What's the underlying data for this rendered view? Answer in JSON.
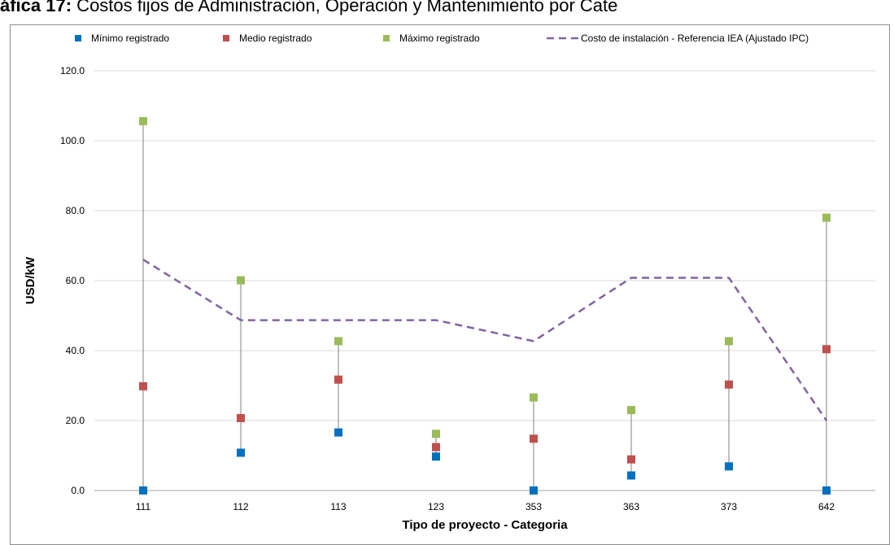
{
  "title": {
    "prefix": "áfica 17:",
    "text": " Costos fijos de Administración, Operación y Mantenimiento por Cate"
  },
  "colors": {
    "min": "#0070C0",
    "mid": "#C0504D",
    "max": "#9BBB59",
    "ref": "#8064A2",
    "grid": "#d9d9d9",
    "range_line": "#808080"
  },
  "chart_data": {
    "type": "scatter",
    "xlabel": "Tipo de proyecto - Categoria",
    "ylabel": "USD/kW",
    "ylim": [
      0,
      120
    ],
    "yticks": [
      "0.0",
      "20.0",
      "40.0",
      "60.0",
      "80.0",
      "100.0",
      "120.0"
    ],
    "grid": true,
    "legend_position": "top",
    "categories": [
      "111",
      "112",
      "113",
      "123",
      "353",
      "363",
      "373",
      "642"
    ],
    "series": [
      {
        "name": "Mínimo registrado",
        "marker": "square",
        "values": [
          0.0,
          10.8,
          16.6,
          9.7,
          0.0,
          4.3,
          6.9,
          0.0
        ]
      },
      {
        "name": "Medio registrado",
        "marker": "square",
        "values": [
          29.8,
          20.7,
          31.7,
          12.4,
          14.8,
          8.9,
          30.3,
          40.4
        ]
      },
      {
        "name": "Máximo registrado",
        "marker": "square",
        "values": [
          105.6,
          60.1,
          42.7,
          16.2,
          26.6,
          23.0,
          42.7,
          78.0
        ]
      },
      {
        "name": "Costo de instalación - Referencia IEA (Ajustado IPC)",
        "marker": "dashed-line",
        "values": [
          66.0,
          48.7,
          48.7,
          48.7,
          42.7,
          60.8,
          60.8,
          20.0
        ]
      }
    ]
  }
}
